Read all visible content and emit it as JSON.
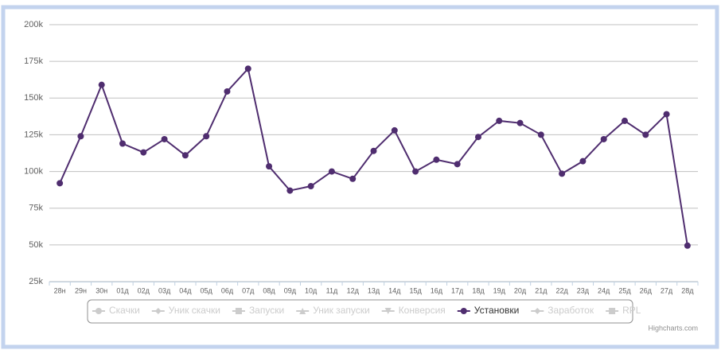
{
  "chart_data": {
    "type": "line",
    "categories": [
      "28н",
      "29н",
      "30н",
      "01д",
      "02д",
      "03д",
      "04д",
      "05д",
      "06д",
      "07д",
      "08д",
      "09д",
      "10д",
      "11д",
      "12д",
      "13д",
      "14д",
      "15д",
      "16д",
      "17д",
      "18д",
      "19д",
      "20д",
      "21д",
      "22д",
      "23д",
      "24д",
      "25д",
      "26д",
      "27д",
      "28д"
    ],
    "series": [
      {
        "name": "Скачки",
        "visible": false,
        "marker": "circle"
      },
      {
        "name": "Уник скачки",
        "visible": false,
        "marker": "diamond"
      },
      {
        "name": "Запуски",
        "visible": false,
        "marker": "square"
      },
      {
        "name": "Уник запуски",
        "visible": false,
        "marker": "triangle"
      },
      {
        "name": "Конверсия",
        "visible": false,
        "marker": "triangle-down"
      },
      {
        "name": "Установки",
        "visible": true,
        "marker": "circle",
        "color": "#4f2d6f",
        "values": [
          92000,
          124000,
          159000,
          119000,
          113000,
          122000,
          111000,
          124000,
          154500,
          170000,
          103500,
          87000,
          90000,
          100000,
          95000,
          114000,
          128000,
          100000,
          108000,
          105000,
          123500,
          134500,
          133000,
          125000,
          98500,
          107000,
          122000,
          134500,
          125000,
          139000,
          49500
        ]
      },
      {
        "name": "Заработок",
        "visible": false,
        "marker": "diamond"
      },
      {
        "name": "RPL",
        "visible": false,
        "marker": "square"
      }
    ],
    "ylim": [
      25000,
      200000
    ],
    "yticks": [
      {
        "value": 25000,
        "label": "25k"
      },
      {
        "value": 50000,
        "label": "50k"
      },
      {
        "value": 75000,
        "label": "75k"
      },
      {
        "value": 100000,
        "label": "100k"
      },
      {
        "value": 125000,
        "label": "125k"
      },
      {
        "value": 150000,
        "label": "150k"
      },
      {
        "value": 175000,
        "label": "175k"
      },
      {
        "value": 200000,
        "label": "200k"
      }
    ],
    "grid": true,
    "hidden_color": "#cccccc",
    "credits": "Highcharts.com"
  }
}
